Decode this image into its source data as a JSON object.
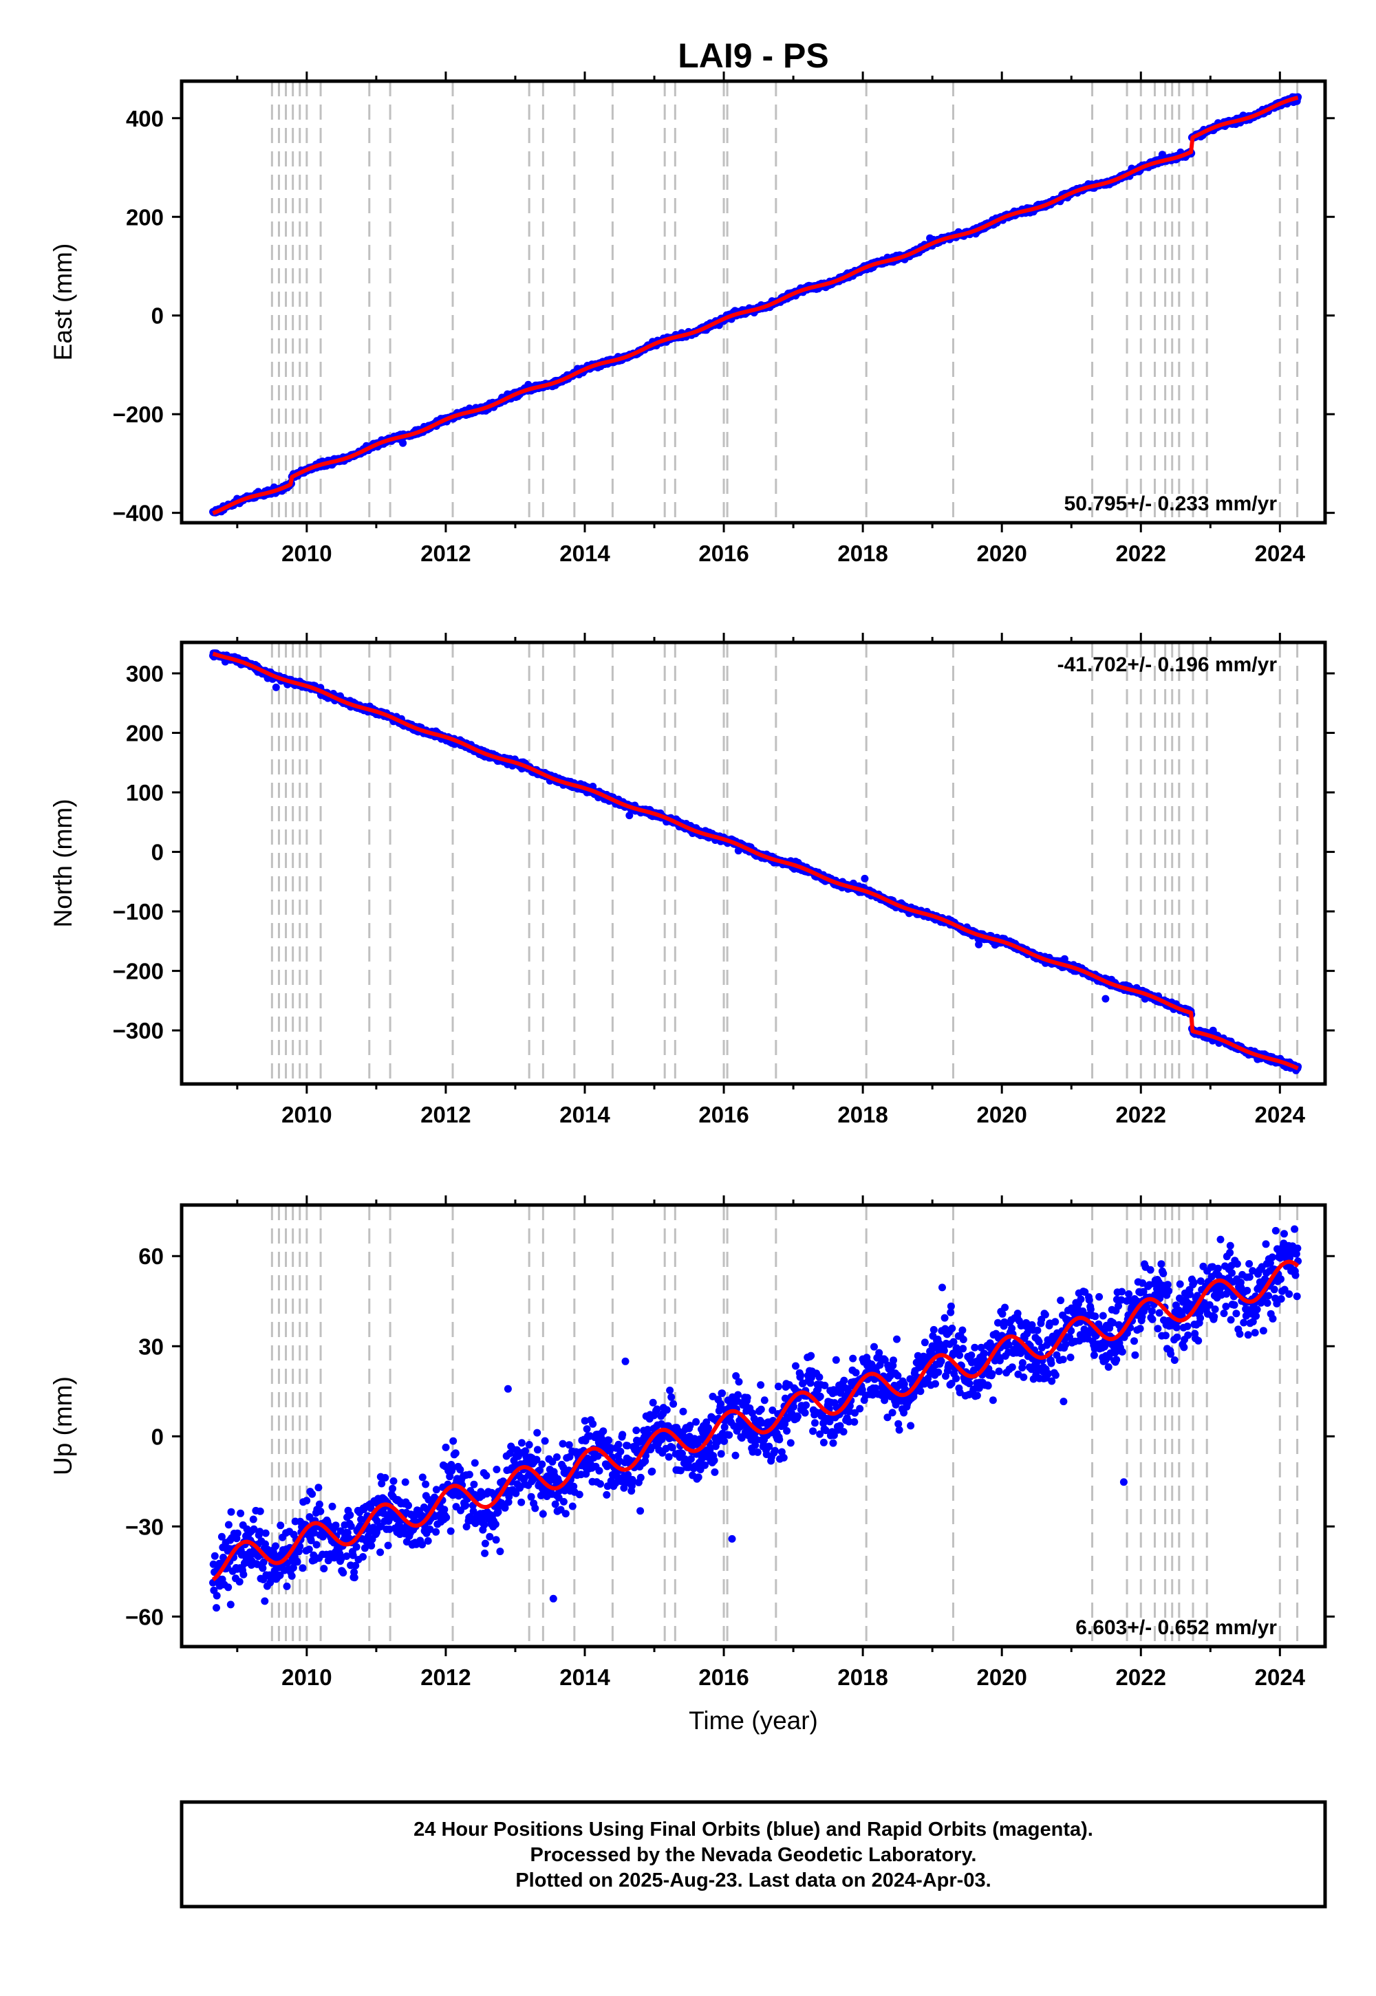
{
  "title": "LAI9 - PS",
  "xlabel": "Time (year)",
  "colors": {
    "points": "#0000ff",
    "model": "#ff0000",
    "event_lines": "#c0c0c0",
    "frame": "#000000"
  },
  "footer": {
    "line1": "24 Hour Positions Using Final Orbits (blue) and Rapid Orbits (magenta).",
    "line2": "Processed by the Nevada Geodetic Laboratory.",
    "line3": "Plotted on 2025-Aug-23. Last data on 2024-Apr-03."
  },
  "chart_data": [
    {
      "type": "scatter",
      "ylabel": "East (mm)",
      "rate_label": "50.795+/- 0.233 mm/yr",
      "rate_position": "bottom-right",
      "xlim": [
        2008.2,
        2024.65
      ],
      "ylim": [
        -420,
        475
      ],
      "x_ticks": [
        "2010",
        "2012",
        "2014",
        "2016",
        "2018",
        "2020",
        "2022",
        "2024"
      ],
      "y_ticks": [
        "-400",
        "-200",
        "0",
        "200",
        "400"
      ],
      "start": {
        "x": 2008.65,
        "y": -398
      },
      "end": {
        "x": 2024.26,
        "y": 440
      },
      "rate_mm_per_yr": 50.795,
      "steps": [
        {
          "x": 2009.78,
          "y_change": 14
        },
        {
          "x": 2022.73,
          "y_change": 28
        }
      ],
      "seasonal_amplitude_mm": 3,
      "scatter_mm": 2.5
    },
    {
      "type": "scatter",
      "ylabel": "North (mm)",
      "rate_label": "-41.702+/- 0.196 mm/yr",
      "rate_position": "top-right",
      "xlim": [
        2008.2,
        2024.65
      ],
      "ylim": [
        -390,
        352
      ],
      "x_ticks": [
        "2010",
        "2012",
        "2014",
        "2016",
        "2018",
        "2020",
        "2022",
        "2024"
      ],
      "y_ticks": [
        "-300",
        "-200",
        "-100",
        "0",
        "100",
        "200",
        "300"
      ],
      "start": {
        "x": 2008.65,
        "y": 335
      },
      "end": {
        "x": 2024.26,
        "y": -365
      },
      "rate_mm_per_yr": -41.702,
      "steps": [
        {
          "x": 2022.73,
          "y_change": -30
        }
      ],
      "seasonal_amplitude_mm": 2,
      "scatter_mm": 2.5
    },
    {
      "type": "scatter",
      "ylabel": "Up (mm)",
      "rate_label": "6.603+/- 0.652 mm/yr",
      "rate_position": "bottom-right",
      "xlim": [
        2008.2,
        2024.65
      ],
      "ylim": [
        -70,
        77
      ],
      "x_ticks": [
        "2010",
        "2012",
        "2014",
        "2016",
        "2018",
        "2020",
        "2022",
        "2024"
      ],
      "y_ticks": [
        "-60",
        "-30",
        "0",
        "30",
        "60"
      ],
      "start": {
        "x": 2008.65,
        "y": -43
      },
      "end": {
        "x": 2024.26,
        "y": 54
      },
      "rate_mm_per_yr": 6.603,
      "steps": [],
      "seasonal_amplitude_mm": 5,
      "scatter_mm": 5.5
    }
  ],
  "event_lines_x": [
    2009.5,
    2009.6,
    2009.7,
    2009.8,
    2009.9,
    2010.0,
    2010.2,
    2010.9,
    2011.2,
    2012.1,
    2013.2,
    2013.4,
    2013.85,
    2014.4,
    2015.15,
    2015.3,
    2016.0,
    2016.05,
    2016.75,
    2018.05,
    2019.3,
    2021.3,
    2021.8,
    2022.0,
    2022.2,
    2022.35,
    2022.45,
    2022.55,
    2022.75,
    2022.95,
    2024.0,
    2024.25
  ]
}
